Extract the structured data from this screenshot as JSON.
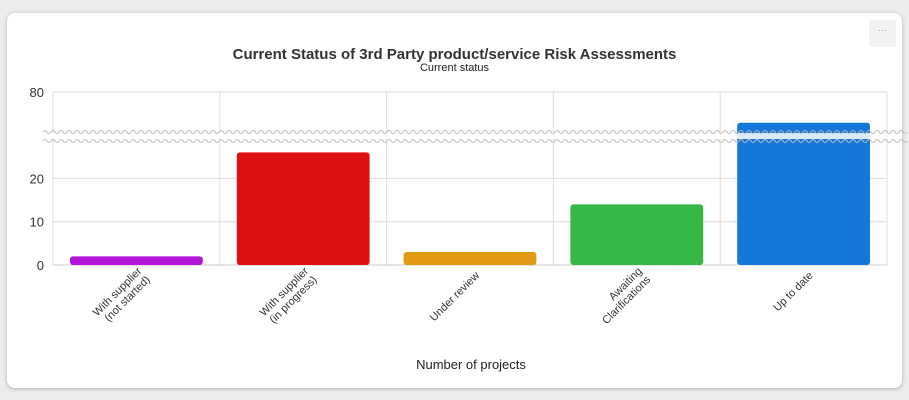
{
  "menu": {
    "label": "···"
  },
  "chart_data": {
    "type": "bar",
    "title": "Current Status of 3rd Party product/service Risk Assessments",
    "subtitle": "Current status",
    "xlabel": "Number of projects",
    "ylabel": "",
    "categories": [
      [
        "With supplier",
        "(not started)"
      ],
      [
        "With supplier",
        "(in progress)"
      ],
      [
        "Under review"
      ],
      [
        "Awaiting",
        "Clarifications"
      ],
      [
        "Up to date"
      ]
    ],
    "values": [
      2,
      26,
      3,
      14,
      66
    ],
    "colors": [
      "#b015d8",
      "#dd1111",
      "#e09a14",
      "#35b845",
      "#1478db"
    ],
    "yticks": [
      0,
      10,
      20,
      80
    ],
    "ylim": [
      0,
      80
    ],
    "axis_break": [
      30,
      60
    ],
    "grid": true
  }
}
